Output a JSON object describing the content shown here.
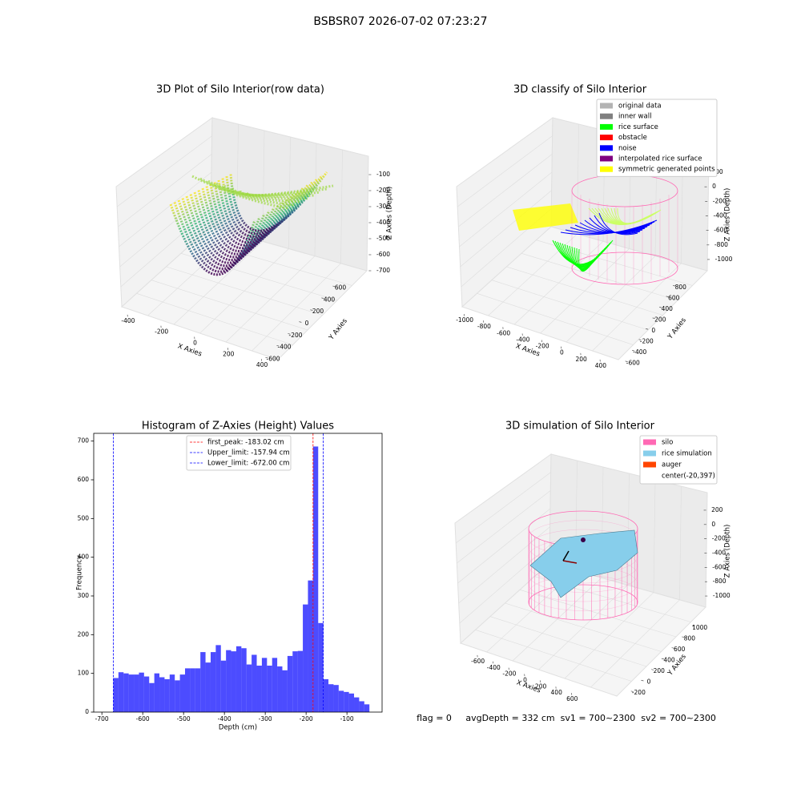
{
  "title": "BSBSR07 2026-07-02 07:23:27",
  "footer": "flag = 0     avgDepth = 332 cm  sv1 = 700~2300  sv2 = 700~2300",
  "chart_data": [
    {
      "type": "scatter3d",
      "title": "3D Plot of Silo Interior(row data)",
      "xlabel": "X Axies",
      "ylabel": "Y Axies",
      "zlabel": "Z Axies (Depth)",
      "xlim": [
        -500,
        500
      ],
      "xticks": [
        -400,
        -200,
        0,
        200,
        400
      ],
      "ylim": [
        -700,
        700
      ],
      "yticks": [
        -600,
        -400,
        -200,
        0,
        200,
        400,
        600
      ],
      "zlim": [
        -750,
        -50
      ],
      "zticks": [
        -700,
        -600,
        -500,
        -400,
        -300,
        -200,
        -100
      ],
      "colormap": "viridis"
    },
    {
      "type": "scatter3d",
      "title": "3D classify of Silo Interior",
      "xlabel": "X Axies",
      "ylabel": "Y Axies",
      "zlabel": "Z Axies (Depth)",
      "xlim": [
        -1100,
        500
      ],
      "xticks": [
        -1000,
        -800,
        -600,
        -400,
        -200,
        0,
        200,
        400
      ],
      "ylim": [
        -700,
        900
      ],
      "yticks": [
        -600,
        -400,
        -200,
        0,
        200,
        400,
        600,
        800
      ],
      "zlim": [
        -1100,
        300
      ],
      "zticks": [
        -1000,
        -800,
        -600,
        -400,
        -200,
        0,
        200
      ],
      "legend": "upper right",
      "series": [
        {
          "name": "original data",
          "color": "#b3b3b3"
        },
        {
          "name": "inner wall",
          "color": "#808080"
        },
        {
          "name": "rice surface",
          "color": "#00ff00"
        },
        {
          "name": "obstacle",
          "color": "#ff0000"
        },
        {
          "name": "noise",
          "color": "#0000ff"
        },
        {
          "name": "interpolated rice surface",
          "color": "#800080"
        },
        {
          "name": "symmetric generated points",
          "color": "#ffff00"
        }
      ]
    },
    {
      "type": "histogram",
      "title": "Histogram of Z-Axies (Height) Values",
      "xlabel": "Depth (cm)",
      "ylabel": "Frequency",
      "color": "#0000ff",
      "alpha": 0.7,
      "bins": [
        -672.0,
        -659.46,
        -646.92,
        -634.38,
        -621.84,
        -609.3,
        -596.76,
        -584.22,
        -571.68,
        -559.14,
        -546.6,
        -534.06,
        -521.52,
        -508.98,
        -496.44,
        -483.9,
        -471.36,
        -458.82,
        -446.28,
        -433.74,
        -421.2,
        -408.66,
        -396.12,
        -383.58,
        -371.04,
        -358.5,
        -345.96,
        -333.42,
        -320.88,
        -308.34,
        -295.8,
        -283.26,
        -270.72,
        -258.18,
        -245.64,
        -233.1,
        -220.56,
        -208.02,
        -195.48,
        -182.94,
        -170.4,
        -157.86,
        -145.32,
        -132.78,
        -120.24,
        -107.7,
        -95.16,
        -82.62,
        -70.08,
        -57.54,
        -45.0
      ],
      "values": [
        88,
        103,
        100,
        97,
        97,
        102,
        92,
        75,
        100,
        90,
        85,
        97,
        82,
        97,
        113,
        113,
        113,
        155,
        128,
        155,
        173,
        133,
        160,
        157,
        170,
        165,
        123,
        148,
        120,
        140,
        120,
        140,
        118,
        108,
        145,
        157,
        158,
        278,
        340,
        686,
        230,
        85,
        72,
        70,
        55,
        52,
        48,
        38,
        28,
        20
      ],
      "xlim": [
        -720,
        -14
      ],
      "xticks": [
        -700,
        -600,
        -500,
        -400,
        -300,
        -200,
        -100
      ],
      "ylim": [
        0,
        720
      ],
      "yticks": [
        0,
        100,
        200,
        300,
        400,
        500,
        600,
        700
      ],
      "legend": "upper center",
      "vlines": [
        {
          "label": "first_peak: -183.02 cm",
          "value": -183.02,
          "color": "#ff0000"
        },
        {
          "label": "Upper_limit: -157.94 cm",
          "value": -157.94,
          "color": "#0000ff"
        },
        {
          "label": "Lower_limit: -672.00 cm",
          "value": -672.0,
          "color": "#0000ff"
        }
      ]
    },
    {
      "type": "wireframe3d",
      "title": "3D simulation of Silo Interior",
      "xlabel": "X Axies",
      "ylabel": "Y Axies",
      "zlabel": "Z Axies (Depth)",
      "xlim": [
        -750,
        750
      ],
      "xticks": [
        -600,
        -400,
        -200,
        0,
        200,
        400,
        600
      ],
      "ylim": [
        -300,
        1100
      ],
      "yticks": [
        -200,
        0,
        200,
        400,
        600,
        800,
        1000
      ],
      "zlim": [
        -1100,
        300
      ],
      "zticks": [
        -1000,
        -800,
        -600,
        -400,
        -200,
        0,
        200
      ],
      "legend": "upper right",
      "series": [
        {
          "name": "silo",
          "color": "#ff69b4"
        },
        {
          "name": "rice simulation",
          "color": "#87ceeb"
        },
        {
          "name": "auger",
          "color": "#ff4500"
        },
        {
          "name": "center(-20,397)",
          "color": "#ffffff"
        }
      ]
    }
  ]
}
